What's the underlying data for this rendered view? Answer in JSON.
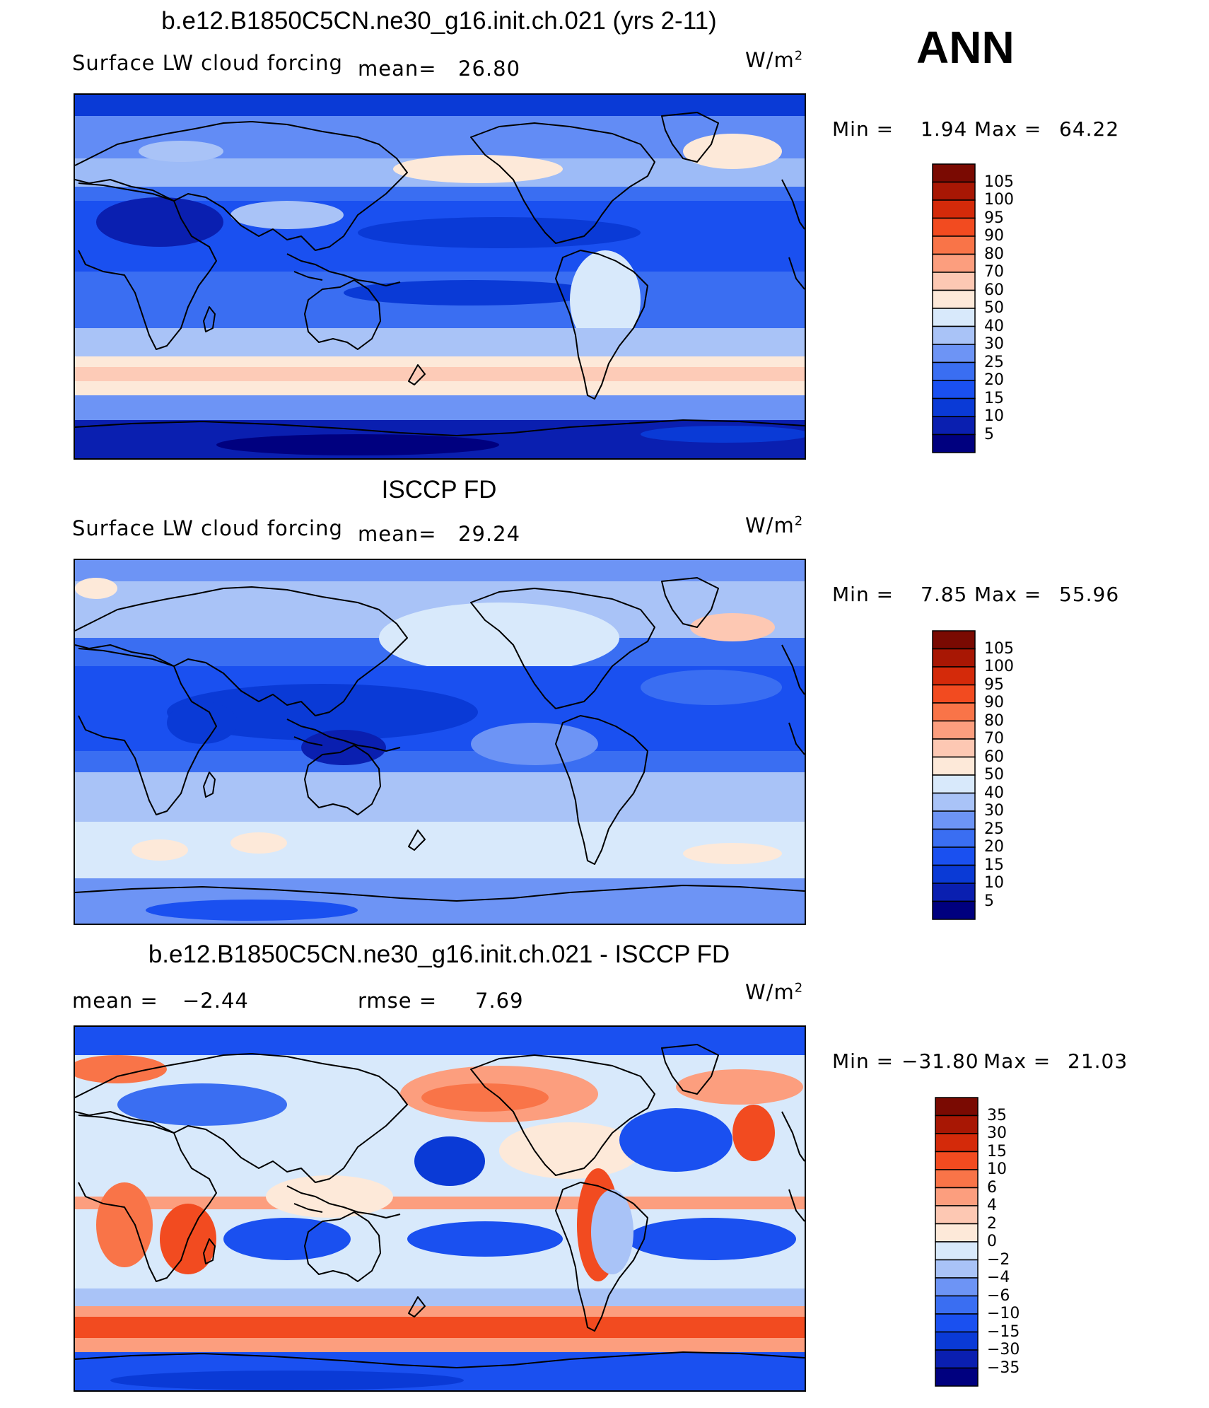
{
  "season": "ANN",
  "panels": [
    {
      "title": "b.e12.B1850C5CN.ne30_g16.init.ch.021 (yrs 2-11)",
      "variable": "Surface LW cloud forcing",
      "mean_label": "mean=",
      "mean_value": "26.80",
      "units_base": "W/m",
      "units_exp": "2",
      "min_label": "Min =",
      "min_value": "1.94",
      "max_label": "Max =",
      "max_value": "64.22",
      "colorbar_labels": [
        "105",
        "100",
        "95",
        "90",
        "80",
        "70",
        "60",
        "50",
        "40",
        "30",
        "25",
        "20",
        "15",
        "10",
        "5"
      ]
    },
    {
      "title": "ISCCP FD",
      "variable": "Surface LW cloud forcing",
      "mean_label": "mean=",
      "mean_value": "29.24",
      "units_base": "W/m",
      "units_exp": "2",
      "min_label": "Min =",
      "min_value": "7.85",
      "max_label": "Max =",
      "max_value": "55.96",
      "colorbar_labels": [
        "105",
        "100",
        "95",
        "90",
        "80",
        "70",
        "60",
        "50",
        "40",
        "30",
        "25",
        "20",
        "15",
        "10",
        "5"
      ]
    },
    {
      "title": "b.e12.B1850C5CN.ne30_g16.init.ch.021 - ISCCP FD",
      "mean_label": "mean =",
      "mean_value": "−2.44",
      "rmse_label": "rmse =",
      "rmse_value": "7.69",
      "units_base": "W/m",
      "units_exp": "2",
      "min_label": "Min =",
      "min_value": "−31.80",
      "max_label": "Max =",
      "max_value": "21.03",
      "colorbar_labels": [
        "35",
        "30",
        "15",
        "10",
        "6",
        "4",
        "2",
        "0",
        "−2",
        "−4",
        "−6",
        "−10",
        "−15",
        "−30",
        "−35"
      ]
    }
  ],
  "chart_data": [
    {
      "type": "heatmap",
      "title": "b.e12.B1850C5CN.ne30_g16.init.ch.021 (yrs 2-11)",
      "subtitle": "Surface LW cloud forcing",
      "units": "W/m2",
      "mean": 26.8,
      "min": 1.94,
      "max": 64.22,
      "contour_levels": [
        5,
        10,
        15,
        20,
        25,
        30,
        40,
        50,
        60,
        70,
        80,
        90,
        95,
        100,
        105
      ],
      "colormap": [
        "#00007f",
        "#0a1fb0",
        "#0a3ad6",
        "#1a50f0",
        "#3a6ef2",
        "#6d94f5",
        "#a9c3f7",
        "#d8e9fb",
        "#fde9d9",
        "#fdc8b3",
        "#fc9e7e",
        "#f97448",
        "#f24b20",
        "#d42a0a",
        "#a81704",
        "#7a0a02"
      ],
      "continent_outlines": true
    },
    {
      "type": "heatmap",
      "title": "ISCCP FD",
      "subtitle": "Surface LW cloud forcing",
      "units": "W/m2",
      "mean": 29.24,
      "min": 7.85,
      "max": 55.96,
      "contour_levels": [
        5,
        10,
        15,
        20,
        25,
        30,
        40,
        50,
        60,
        70,
        80,
        90,
        95,
        100,
        105
      ],
      "colormap": [
        "#00007f",
        "#0a1fb0",
        "#0a3ad6",
        "#1a50f0",
        "#3a6ef2",
        "#6d94f5",
        "#a9c3f7",
        "#d8e9fb",
        "#fde9d9",
        "#fdc8b3",
        "#fc9e7e",
        "#f97448",
        "#f24b20",
        "#d42a0a",
        "#a81704",
        "#7a0a02"
      ],
      "continent_outlines": true
    },
    {
      "type": "heatmap",
      "title": "b.e12.B1850C5CN.ne30_g16.init.ch.021 - ISCCP FD",
      "units": "W/m2",
      "mean": -2.44,
      "rmse": 7.69,
      "min": -31.8,
      "max": 21.03,
      "contour_levels": [
        -35,
        -30,
        -15,
        -10,
        -6,
        -4,
        -2,
        0,
        2,
        4,
        6,
        10,
        15,
        30,
        35
      ],
      "colormap": [
        "#00007f",
        "#0a1fb0",
        "#0a3ad6",
        "#1a50f0",
        "#3a6ef2",
        "#6d94f5",
        "#a9c3f7",
        "#d8e9fb",
        "#fde9d9",
        "#fdc8b3",
        "#fc9e7e",
        "#f97448",
        "#f24b20",
        "#d42a0a",
        "#a81704",
        "#7a0a02"
      ],
      "continent_outlines": true
    }
  ]
}
